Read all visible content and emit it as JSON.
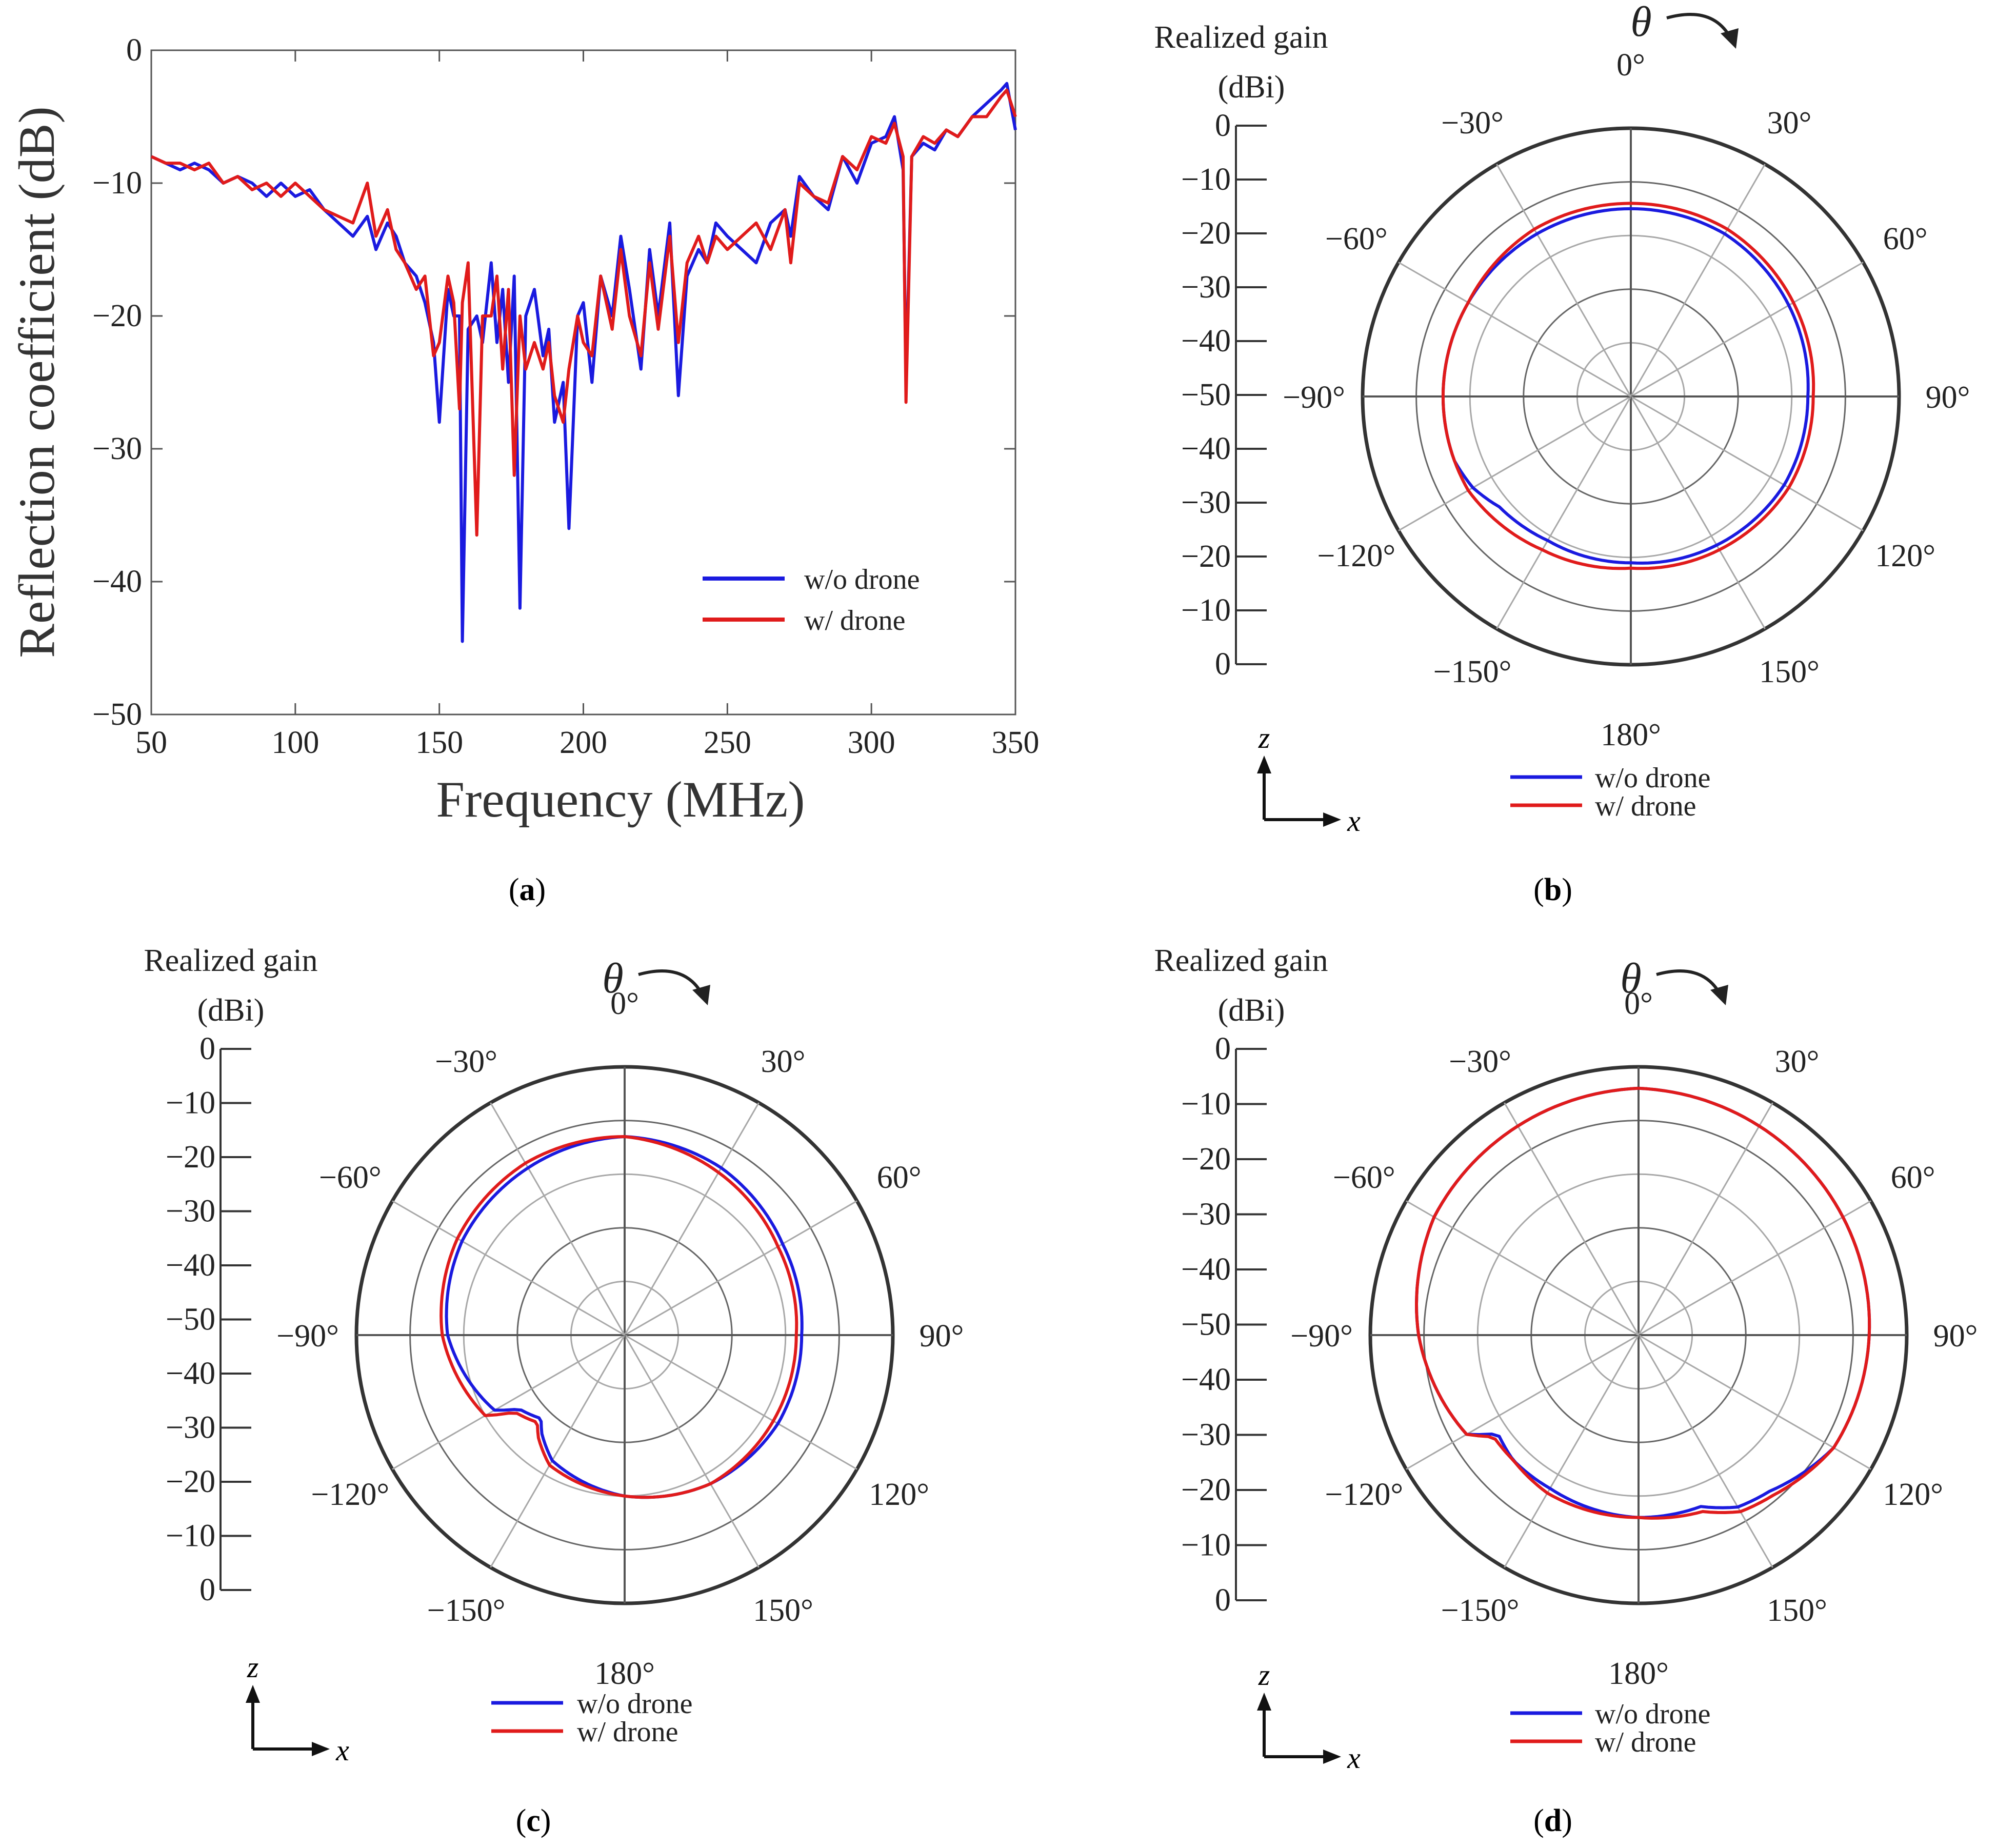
{
  "colors": {
    "blue": "#1a1adf",
    "red": "#e01b1b",
    "grid": "#a8a8a8",
    "axis": "#333333"
  },
  "legend": {
    "blue_label": "w/o drone",
    "red_label": "w/ drone"
  },
  "panel_labels": {
    "a": "a",
    "b": "b",
    "c": "c",
    "d": "d"
  },
  "paren_open": "(",
  "paren_close": ")",
  "coord": {
    "z": "z",
    "x": "x"
  },
  "polar_common": {
    "gain_title_1": "Realized gain",
    "gain_title_2": "(dBi)",
    "theta": "θ",
    "gain_ticks": [
      "0",
      "−10",
      "−20",
      "−30",
      "−40",
      "−50",
      "−40",
      "−30",
      "−20",
      "−10",
      "0"
    ],
    "angle_labels": [
      "0°",
      "30°",
      "60°",
      "90°",
      "120°",
      "150°",
      "180°",
      "−150°",
      "−120°",
      "−90°",
      "−60°",
      "−30°"
    ],
    "rlim": [
      -50,
      0
    ]
  },
  "chart_data": [
    {
      "type": "line",
      "panel": "a",
      "title": "",
      "xlabel": "Frequency (MHz)",
      "ylabel": "Reflection coefficient (dB)",
      "xlim": [
        50,
        350
      ],
      "ylim": [
        -50,
        0
      ],
      "xticks": [
        "50",
        "100",
        "150",
        "200",
        "250",
        "300",
        "350"
      ],
      "yticks": [
        "0",
        "−10",
        "−20",
        "−30",
        "−40",
        "−50"
      ],
      "legend_position": "lower-right",
      "series": [
        {
          "name": "w/o drone",
          "x": [
            50,
            55,
            60,
            65,
            70,
            75,
            80,
            85,
            90,
            95,
            100,
            105,
            110,
            115,
            120,
            125,
            128,
            132,
            135,
            138,
            142,
            145,
            148,
            150,
            153,
            155,
            157,
            158,
            160,
            163,
            165,
            168,
            170,
            172,
            174,
            176,
            178,
            180,
            183,
            186,
            188,
            190,
            193,
            195,
            198,
            200,
            203,
            206,
            210,
            213,
            216,
            220,
            223,
            226,
            230,
            233,
            236,
            240,
            243,
            246,
            250,
            255,
            260,
            265,
            270,
            272,
            275,
            280,
            285,
            290,
            295,
            300,
            305,
            308,
            311,
            312,
            314,
            318,
            322,
            326,
            330,
            335,
            340,
            345,
            347,
            350
          ],
          "values": [
            -8,
            -8.5,
            -9,
            -8.5,
            -9,
            -10,
            -9.5,
            -10,
            -11,
            -10,
            -11,
            -10.5,
            -12,
            -13,
            -14,
            -12.5,
            -15,
            -13,
            -14,
            -16,
            -17,
            -19,
            -22,
            -28,
            -18,
            -20,
            -20,
            -44.5,
            -21,
            -20,
            -22,
            -16,
            -22,
            -18,
            -25,
            -17,
            -42,
            -20,
            -18,
            -23,
            -21,
            -28,
            -25,
            -36,
            -20,
            -19,
            -25,
            -17,
            -20,
            -14,
            -18,
            -24,
            -15,
            -20,
            -13,
            -26,
            -17,
            -15,
            -16,
            -13,
            -14,
            -15,
            -16,
            -13,
            -12,
            -14,
            -9.5,
            -11,
            -12,
            -8,
            -10,
            -7,
            -6.5,
            -5,
            -9,
            -25,
            -8,
            -7,
            -7.5,
            -6,
            -6.5,
            -5,
            -4,
            -3,
            -2.5,
            -6
          ]
        },
        {
          "name": "w/ drone",
          "x": [
            50,
            55,
            60,
            65,
            70,
            75,
            80,
            85,
            90,
            95,
            100,
            105,
            110,
            115,
            120,
            125,
            128,
            132,
            135,
            138,
            142,
            145,
            148,
            150,
            153,
            155,
            157,
            158,
            160,
            163,
            165,
            168,
            170,
            172,
            174,
            176,
            178,
            180,
            183,
            186,
            188,
            190,
            193,
            195,
            198,
            200,
            203,
            206,
            210,
            213,
            216,
            220,
            223,
            226,
            230,
            233,
            236,
            240,
            243,
            246,
            250,
            255,
            260,
            265,
            270,
            272,
            275,
            280,
            285,
            290,
            295,
            300,
            305,
            308,
            311,
            312,
            314,
            318,
            322,
            326,
            330,
            335,
            340,
            345,
            347,
            350
          ],
          "values": [
            -8,
            -8.5,
            -8.5,
            -9,
            -8.5,
            -10,
            -9.5,
            -10.5,
            -10,
            -11,
            -10,
            -11,
            -12,
            -12.5,
            -13,
            -10,
            -14,
            -12,
            -15,
            -16,
            -18,
            -17,
            -23,
            -22,
            -17,
            -19,
            -27,
            -19,
            -16,
            -36.5,
            -20,
            -20,
            -17,
            -24,
            -18,
            -32,
            -20,
            -24,
            -22,
            -24,
            -22,
            -26,
            -28,
            -24,
            -20,
            -22,
            -23,
            -17,
            -21,
            -15,
            -20,
            -23,
            -16,
            -21,
            -14,
            -22,
            -16,
            -14,
            -16,
            -14,
            -15,
            -14,
            -13,
            -15,
            -12,
            -16,
            -10,
            -11,
            -11.5,
            -8,
            -9,
            -6.5,
            -7,
            -5.5,
            -8,
            -26.5,
            -8,
            -6.5,
            -7,
            -6,
            -6.5,
            -5,
            -5,
            -3.5,
            -3,
            -5
          ]
        }
      ]
    },
    {
      "type": "polar",
      "panel": "b",
      "rlim": [
        -50,
        0
      ],
      "series": [
        {
          "name": "w/o drone",
          "theta": [
            0,
            30,
            60,
            90,
            100,
            120,
            150,
            180,
            210,
            230,
            240,
            250,
            270,
            280,
            300,
            330,
            360
          ],
          "values": [
            -15,
            -15,
            -16,
            -17,
            -17,
            -17,
            -18,
            -19,
            -19,
            -18,
            -16,
            -15,
            -15,
            -15,
            -15,
            -15,
            -15
          ]
        },
        {
          "name": "w/ drone",
          "theta": [
            0,
            30,
            60,
            90,
            120,
            150,
            180,
            210,
            240,
            270,
            300,
            330,
            360
          ],
          "values": [
            -14,
            -14,
            -15,
            -16,
            -16,
            -17,
            -18,
            -17,
            -15,
            -15,
            -15,
            -14,
            -14
          ]
        }
      ]
    },
    {
      "type": "polar",
      "panel": "c",
      "rlim": [
        -50,
        0
      ],
      "series": [
        {
          "name": "w/o drone",
          "theta": [
            0,
            30,
            60,
            90,
            120,
            150,
            180,
            210,
            220,
            225,
            235,
            240,
            270,
            300,
            330,
            360
          ],
          "values": [
            -13,
            -14,
            -16,
            -17,
            -17,
            -18,
            -20,
            -23,
            -26,
            -28,
            -26,
            -22,
            -17,
            -15,
            -14,
            -13
          ]
        },
        {
          "name": "w/ drone",
          "theta": [
            0,
            30,
            60,
            90,
            120,
            150,
            180,
            210,
            220,
            225,
            235,
            240,
            270,
            300,
            330,
            360
          ],
          "values": [
            -13,
            -15,
            -17,
            -18,
            -18,
            -18,
            -20,
            -22,
            -25,
            -27,
            -25,
            -20,
            -16,
            -14,
            -13,
            -13
          ]
        }
      ]
    },
    {
      "type": "polar",
      "panel": "d",
      "rlim": [
        -50,
        0
      ],
      "series": [
        {
          "name": "w/o drone",
          "theta": [
            0,
            30,
            60,
            90,
            120,
            140,
            150,
            160,
            180,
            210,
            225,
            235,
            240,
            270,
            300,
            330,
            360
          ],
          "values": [
            -4,
            -5,
            -6,
            -7,
            -8,
            -12,
            -13,
            -16,
            -16,
            -17,
            -17,
            -18,
            -13,
            -9,
            -6,
            -5,
            -4
          ]
        },
        {
          "name": "w/ drone",
          "theta": [
            0,
            30,
            60,
            90,
            120,
            140,
            150,
            160,
            180,
            210,
            225,
            235,
            240,
            270,
            300,
            330,
            360
          ],
          "values": [
            -4,
            -5,
            -6,
            -7,
            -8,
            -11,
            -12,
            -15,
            -16,
            -16,
            -17,
            -17,
            -13,
            -9,
            -6,
            -5,
            -4
          ]
        }
      ]
    }
  ]
}
